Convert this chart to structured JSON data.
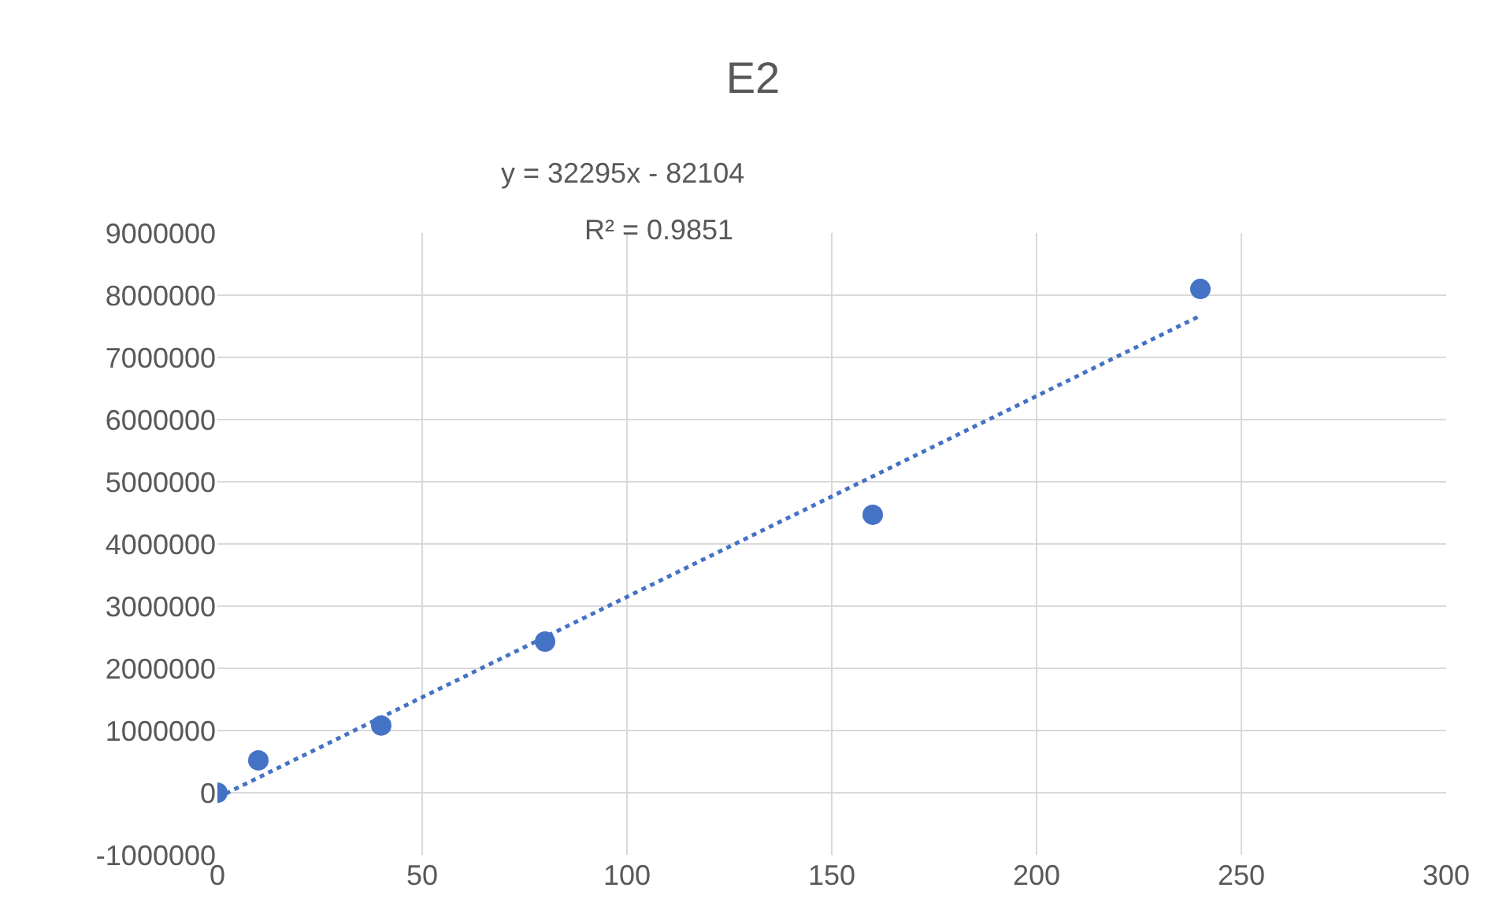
{
  "chart_data": {
    "type": "scatter",
    "title": "E2",
    "series": [
      {
        "color": "#4472c4",
        "marker": "circle",
        "x": [
          0,
          10,
          40,
          80,
          160,
          240
        ],
        "values": [
          0,
          520000,
          1080000,
          2430000,
          4470000,
          8100000
        ]
      },
      {
        "type": "line",
        "color": "#4472c4",
        "line_style": "dotted",
        "marker": "none",
        "x": [
          0,
          240
        ],
        "values": [
          -80000,
          7670000
        ]
      }
    ],
    "annotations": [
      "y = 32295x - 82104",
      "R² = 0.9851"
    ],
    "xlim": [
      0,
      300
    ],
    "xticks": [
      0,
      50,
      100,
      150,
      200,
      250,
      300
    ],
    "ylim": [
      -1000000,
      9000000
    ],
    "yticks": [
      -1000000,
      0,
      1000000,
      2000000,
      3000000,
      4000000,
      5000000,
      6000000,
      7000000,
      8000000,
      9000000
    ],
    "grid": true
  }
}
